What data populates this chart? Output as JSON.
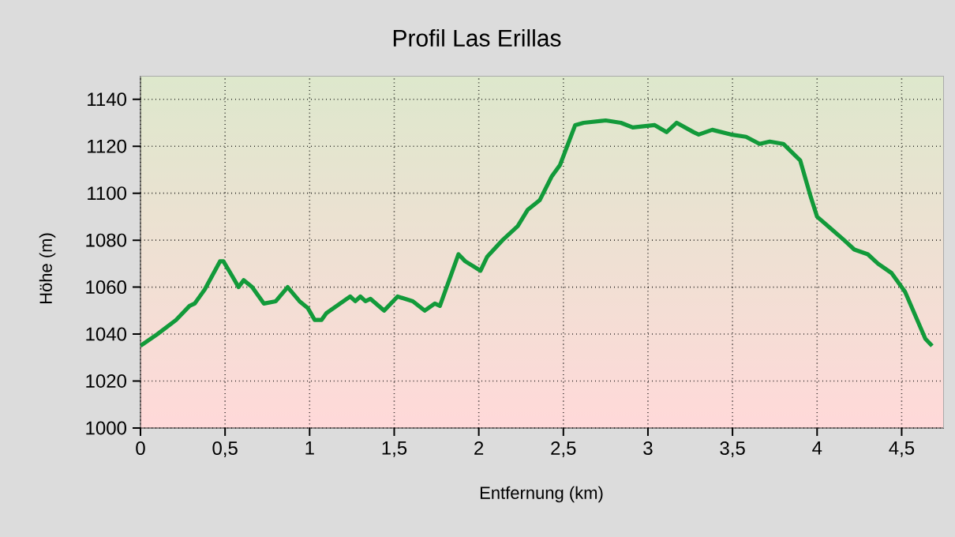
{
  "chart_data": {
    "type": "line",
    "title": "Profil Las Erillas",
    "xlabel": "Entfernung (km)",
    "ylabel": "Höhe (m)",
    "xlim": [
      0,
      4.75
    ],
    "ylim": [
      1000,
      1150
    ],
    "xticks": [
      0,
      {
        "value": 0.5,
        "label": "0,5"
      },
      1,
      {
        "value": 1.5,
        "label": "1,5"
      },
      2,
      {
        "value": 2.5,
        "label": "2,5"
      },
      3,
      {
        "value": 3.5,
        "label": "3,5"
      },
      4,
      {
        "value": 4.5,
        "label": "4,5"
      }
    ],
    "yticks": [
      1000,
      1020,
      1040,
      1060,
      1080,
      1100,
      1120,
      1140
    ],
    "grid": true,
    "marker": "none",
    "line_style": "solid",
    "x": [
      0,
      0.1,
      0.21,
      0.29,
      0.32,
      0.38,
      0.47,
      0.49,
      0.54,
      0.58,
      0.61,
      0.66,
      0.69,
      0.73,
      0.8,
      0.87,
      0.94,
      0.99,
      1.03,
      1.07,
      1.1,
      1.16,
      1.24,
      1.27,
      1.3,
      1.33,
      1.36,
      1.44,
      1.52,
      1.61,
      1.68,
      1.74,
      1.77,
      1.88,
      1.92,
      2.01,
      2.05,
      2.14,
      2.23,
      2.29,
      2.36,
      2.43,
      2.48,
      2.57,
      2.62,
      2.75,
      2.84,
      2.91,
      3.04,
      3.11,
      3.17,
      3.27,
      3.3,
      3.38,
      3.49,
      3.58,
      3.66,
      3.72,
      3.8,
      3.9,
      3.96,
      4.0,
      4.08,
      4.16,
      4.22,
      4.3,
      4.36,
      4.44,
      4.52,
      4.58,
      4.64,
      4.68
    ],
    "series": [
      {
        "color": "#129a3a",
        "values": [
          1035,
          1040,
          1046,
          1052,
          1053,
          1059,
          1071,
          1071,
          1065,
          1060,
          1063,
          1060,
          1057,
          1053,
          1054,
          1060,
          1054,
          1051,
          1046,
          1046,
          1049,
          1052,
          1056,
          1054,
          1056,
          1054,
          1055,
          1050,
          1056,
          1054,
          1050,
          1053,
          1052,
          1074,
          1071,
          1067,
          1073,
          1080,
          1086,
          1093,
          1097,
          1107,
          1112,
          1129,
          1130,
          1131,
          1130,
          1128,
          1129,
          1126,
          1130,
          1126,
          1125,
          1127,
          1125,
          1124,
          1121,
          1122,
          1121,
          1114,
          1099,
          1090,
          1085,
          1080,
          1076,
          1074,
          1070,
          1066,
          1058,
          1048,
          1038,
          1035
        ]
      }
    ]
  }
}
